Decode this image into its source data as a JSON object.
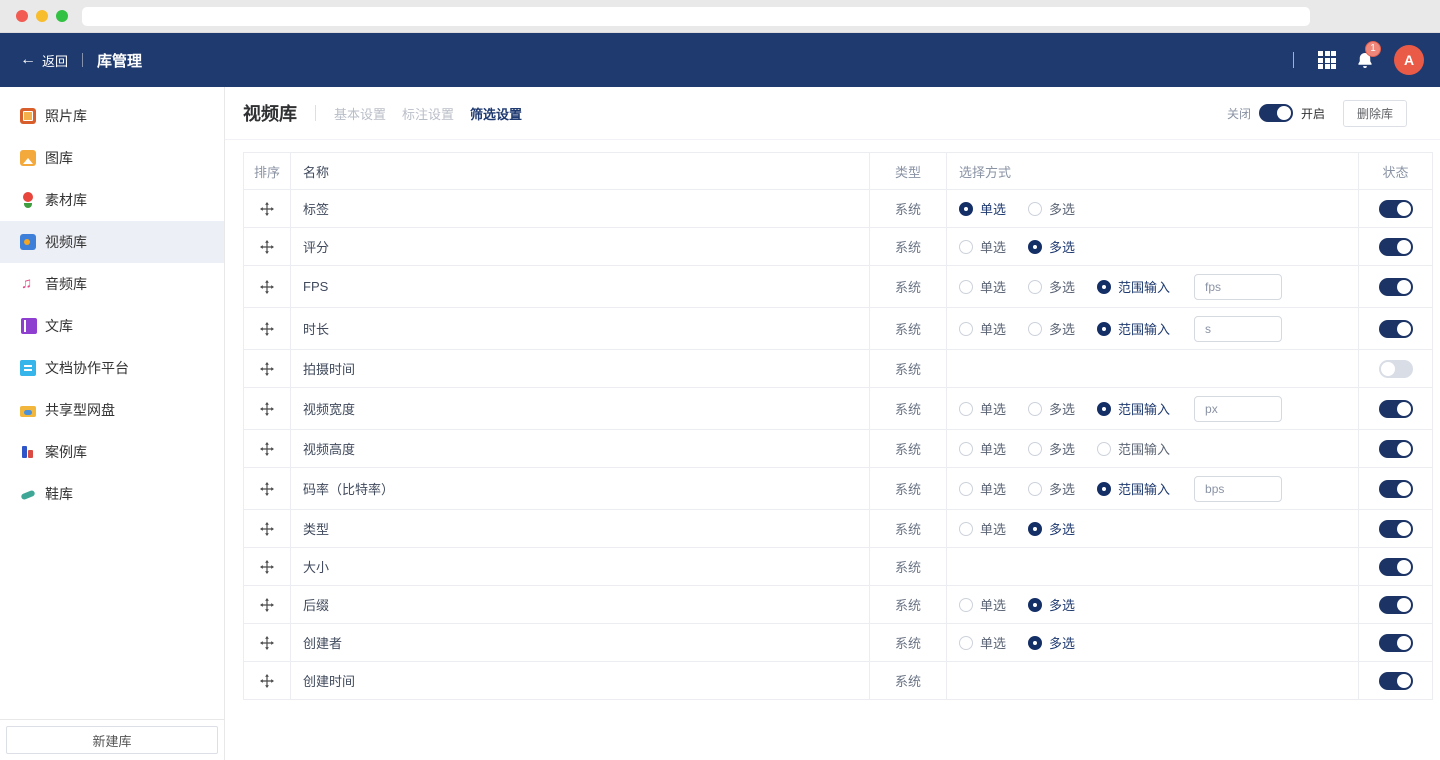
{
  "browser": {
    "url": ""
  },
  "appbar": {
    "back_label": "返回",
    "title": "库管理",
    "notification_count": "1",
    "avatar_letter": "A"
  },
  "sidebar": {
    "items": [
      {
        "id": "photo",
        "icon": "photo-library-icon",
        "label": "照片库",
        "selected": false
      },
      {
        "id": "image",
        "icon": "image-library-icon",
        "label": "图库",
        "selected": false
      },
      {
        "id": "material",
        "icon": "material-library-icon",
        "label": "素材库",
        "selected": false
      },
      {
        "id": "video",
        "icon": "video-library-icon",
        "label": "视频库",
        "selected": true
      },
      {
        "id": "audio",
        "icon": "audio-library-icon",
        "label": "音频库",
        "selected": false
      },
      {
        "id": "doc",
        "icon": "doc-library-icon",
        "label": "文库",
        "selected": false
      },
      {
        "id": "doc-collab",
        "icon": "doc-collab-icon",
        "label": "文档协作平台",
        "selected": false
      },
      {
        "id": "shared-drive",
        "icon": "shared-drive-icon",
        "label": "共享型网盘",
        "selected": false
      },
      {
        "id": "case",
        "icon": "case-library-icon",
        "label": "案例库",
        "selected": false
      },
      {
        "id": "shoe",
        "icon": "shoe-library-icon",
        "label": "鞋库",
        "selected": false
      }
    ],
    "new_library_label": "新建库"
  },
  "main": {
    "title": "视频库",
    "tabs": [
      {
        "key": "basic",
        "label": "基本设置",
        "active": false
      },
      {
        "key": "annotation",
        "label": "标注设置",
        "active": false
      },
      {
        "key": "filter",
        "label": "筛选设置",
        "active": true
      }
    ],
    "toggle": {
      "off_label": "关闭",
      "on_label": "开启",
      "state": "on"
    },
    "delete_button": "删除库"
  },
  "table": {
    "headers": {
      "sort": "排序",
      "name": "名称",
      "type": "类型",
      "selection": "选择方式",
      "status": "状态"
    },
    "radio_labels": {
      "single": "单选",
      "multi": "多选",
      "range": "范围输入"
    },
    "rows": [
      {
        "name": "标签",
        "type": "系统",
        "options": [
          "single",
          "multi"
        ],
        "selected": "single",
        "input": null,
        "enabled": true
      },
      {
        "name": "评分",
        "type": "系统",
        "options": [
          "single",
          "multi"
        ],
        "selected": "multi",
        "input": null,
        "enabled": true
      },
      {
        "name": "FPS",
        "type": "系统",
        "options": [
          "single",
          "multi",
          "range"
        ],
        "selected": "range",
        "input": "fps",
        "enabled": true
      },
      {
        "name": "时长",
        "type": "系统",
        "options": [
          "single",
          "multi",
          "range"
        ],
        "selected": "range",
        "input": "s",
        "enabled": true
      },
      {
        "name": "拍摄时间",
        "type": "系统",
        "options": [],
        "selected": null,
        "input": null,
        "enabled": false
      },
      {
        "name": "视频宽度",
        "type": "系统",
        "options": [
          "single",
          "multi",
          "range"
        ],
        "selected": "range",
        "input": "px",
        "enabled": true
      },
      {
        "name": "视频高度",
        "type": "系统",
        "options": [
          "single",
          "multi",
          "range"
        ],
        "selected": null,
        "input": null,
        "enabled": true
      },
      {
        "name": "码率（比特率）",
        "type": "系统",
        "options": [
          "single",
          "multi",
          "range"
        ],
        "selected": "range",
        "input": "bps",
        "enabled": true
      },
      {
        "name": "类型",
        "type": "系统",
        "options": [
          "single",
          "multi"
        ],
        "selected": "multi",
        "input": null,
        "enabled": true
      },
      {
        "name": "大小",
        "type": "系统",
        "options": [],
        "selected": null,
        "input": null,
        "enabled": true
      },
      {
        "name": "后缀",
        "type": "系统",
        "options": [
          "single",
          "multi"
        ],
        "selected": "multi",
        "input": null,
        "enabled": true
      },
      {
        "name": "创建者",
        "type": "系统",
        "options": [
          "single",
          "multi"
        ],
        "selected": "multi",
        "input": null,
        "enabled": true
      },
      {
        "name": "创建时间",
        "type": "系统",
        "options": [],
        "selected": null,
        "input": null,
        "enabled": true
      }
    ]
  },
  "colors": {
    "header_navy": "#1f3a6f",
    "accent_navy": "#1c3366",
    "radio_navy": "#142e66",
    "avatar_red": "#ea5b47",
    "badge_red": "#f0877b",
    "toggle_off_gray": "#d8dde6",
    "selected_item_bg": "#eceff5",
    "border_gray": "#ebedf0"
  }
}
